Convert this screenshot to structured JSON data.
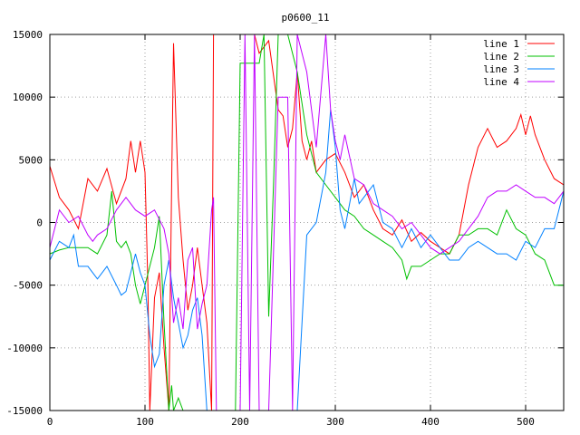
{
  "chart_data": {
    "type": "line",
    "title": "p0600_11",
    "xlabel": "",
    "ylabel": "",
    "xlim": [
      0,
      540
    ],
    "ylim": [
      -15000,
      15000
    ],
    "xticks": [
      0,
      100,
      200,
      300,
      400,
      500
    ],
    "yticks": [
      -15000,
      -10000,
      -5000,
      0,
      5000,
      10000,
      15000
    ],
    "grid": true,
    "legend_position": "top-right",
    "series": [
      {
        "name": "line 1",
        "color": "#ff0000",
        "points": [
          [
            0,
            4500
          ],
          [
            10,
            2000
          ],
          [
            20,
            1000
          ],
          [
            30,
            -500
          ],
          [
            40,
            3500
          ],
          [
            50,
            2500
          ],
          [
            60,
            4300
          ],
          [
            70,
            1500
          ],
          [
            80,
            3500
          ],
          [
            85,
            6500
          ],
          [
            90,
            4000
          ],
          [
            95,
            6500
          ],
          [
            100,
            4000
          ],
          [
            103,
            -5000
          ],
          [
            105,
            -15000
          ],
          [
            110,
            -6000
          ],
          [
            115,
            -4000
          ],
          [
            120,
            -10000
          ],
          [
            125,
            -15000
          ],
          [
            128,
            3000
          ],
          [
            130,
            14300
          ],
          [
            135,
            2000
          ],
          [
            140,
            -3000
          ],
          [
            145,
            -7000
          ],
          [
            150,
            -5000
          ],
          [
            155,
            -2000
          ],
          [
            160,
            -5000
          ],
          [
            165,
            -8000
          ],
          [
            170,
            -15000
          ],
          [
            172,
            15000
          ],
          [
            180,
            15000
          ],
          [
            200,
            15000
          ],
          [
            205,
            15000
          ],
          [
            210,
            15000
          ],
          [
            215,
            15000
          ],
          [
            220,
            13500
          ],
          [
            230,
            14500
          ],
          [
            240,
            9000
          ],
          [
            245,
            8500
          ],
          [
            250,
            6000
          ],
          [
            255,
            7500
          ],
          [
            260,
            12000
          ],
          [
            265,
            6500
          ],
          [
            270,
            5000
          ],
          [
            275,
            6500
          ],
          [
            280,
            4000
          ],
          [
            290,
            5000
          ],
          [
            300,
            5500
          ],
          [
            310,
            4000
          ],
          [
            320,
            2000
          ],
          [
            330,
            3000
          ],
          [
            340,
            1000
          ],
          [
            350,
            -500
          ],
          [
            360,
            -1000
          ],
          [
            370,
            200
          ],
          [
            380,
            -1500
          ],
          [
            390,
            -800
          ],
          [
            400,
            -1500
          ],
          [
            410,
            -2000
          ],
          [
            420,
            -2500
          ],
          [
            430,
            -1000
          ],
          [
            440,
            3000
          ],
          [
            450,
            6000
          ],
          [
            460,
            7500
          ],
          [
            470,
            6000
          ],
          [
            480,
            6500
          ],
          [
            490,
            7500
          ],
          [
            495,
            8600
          ],
          [
            500,
            7000
          ],
          [
            505,
            8500
          ],
          [
            510,
            7000
          ],
          [
            520,
            5000
          ],
          [
            530,
            3500
          ],
          [
            540,
            3000
          ]
        ]
      },
      {
        "name": "line 2",
        "color": "#00c000",
        "points": [
          [
            0,
            -2500
          ],
          [
            10,
            -2200
          ],
          [
            20,
            -2000
          ],
          [
            30,
            -2000
          ],
          [
            40,
            -2000
          ],
          [
            50,
            -2500
          ],
          [
            60,
            -1000
          ],
          [
            65,
            2500
          ],
          [
            70,
            -1500
          ],
          [
            75,
            -2000
          ],
          [
            80,
            -1500
          ],
          [
            85,
            -2500
          ],
          [
            90,
            -5000
          ],
          [
            95,
            -6500
          ],
          [
            100,
            -5000
          ],
          [
            110,
            -2000
          ],
          [
            115,
            500
          ],
          [
            120,
            -8000
          ],
          [
            125,
            -15000
          ],
          [
            128,
            -13000
          ],
          [
            130,
            -15000
          ],
          [
            135,
            -14000
          ],
          [
            140,
            -15000
          ],
          [
            150,
            -15000
          ],
          [
            160,
            -15000
          ],
          [
            170,
            -15000
          ],
          [
            180,
            -15000
          ],
          [
            190,
            -15000
          ],
          [
            195,
            -15000
          ],
          [
            200,
            12700
          ],
          [
            220,
            12700
          ],
          [
            225,
            15000
          ],
          [
            230,
            -7500
          ],
          [
            235,
            3000
          ],
          [
            240,
            15000
          ],
          [
            245,
            15000
          ],
          [
            250,
            15000
          ],
          [
            260,
            12000
          ],
          [
            270,
            7000
          ],
          [
            280,
            4000
          ],
          [
            290,
            3000
          ],
          [
            300,
            2000
          ],
          [
            310,
            1000
          ],
          [
            320,
            500
          ],
          [
            330,
            -500
          ],
          [
            340,
            -1000
          ],
          [
            350,
            -1500
          ],
          [
            360,
            -2000
          ],
          [
            370,
            -3000
          ],
          [
            375,
            -4500
          ],
          [
            380,
            -3500
          ],
          [
            390,
            -3500
          ],
          [
            400,
            -3000
          ],
          [
            410,
            -2500
          ],
          [
            420,
            -2500
          ],
          [
            430,
            -1000
          ],
          [
            440,
            -1000
          ],
          [
            450,
            -500
          ],
          [
            460,
            -500
          ],
          [
            470,
            -1000
          ],
          [
            480,
            1000
          ],
          [
            490,
            -500
          ],
          [
            500,
            -1000
          ],
          [
            510,
            -2500
          ],
          [
            520,
            -3000
          ],
          [
            530,
            -5000
          ],
          [
            540,
            -5000
          ]
        ]
      },
      {
        "name": "line 3",
        "color": "#0080ff",
        "points": [
          [
            0,
            -3000
          ],
          [
            10,
            -1500
          ],
          [
            20,
            -2000
          ],
          [
            25,
            -1000
          ],
          [
            30,
            -3500
          ],
          [
            40,
            -3500
          ],
          [
            50,
            -4500
          ],
          [
            60,
            -3500
          ],
          [
            70,
            -5000
          ],
          [
            75,
            -5800
          ],
          [
            80,
            -5500
          ],
          [
            85,
            -4000
          ],
          [
            90,
            -2500
          ],
          [
            95,
            -4000
          ],
          [
            100,
            -5000
          ],
          [
            105,
            -9000
          ],
          [
            110,
            -11500
          ],
          [
            115,
            -10500
          ],
          [
            120,
            -5000
          ],
          [
            125,
            -3000
          ],
          [
            130,
            -6000
          ],
          [
            135,
            -8000
          ],
          [
            140,
            -10000
          ],
          [
            145,
            -9000
          ],
          [
            150,
            -7000
          ],
          [
            155,
            -6000
          ],
          [
            160,
            -9000
          ],
          [
            165,
            -15000
          ],
          [
            170,
            -15000
          ],
          [
            180,
            -15000
          ],
          [
            190,
            -15000
          ],
          [
            200,
            -15000
          ],
          [
            210,
            -15000
          ],
          [
            220,
            -15000
          ],
          [
            230,
            -15000
          ],
          [
            240,
            -15000
          ],
          [
            250,
            -15000
          ],
          [
            260,
            -15000
          ],
          [
            270,
            -1000
          ],
          [
            280,
            0
          ],
          [
            290,
            4000
          ],
          [
            295,
            9000
          ],
          [
            300,
            6000
          ],
          [
            305,
            1000
          ],
          [
            310,
            -500
          ],
          [
            320,
            3500
          ],
          [
            325,
            1500
          ],
          [
            330,
            2000
          ],
          [
            340,
            3000
          ],
          [
            350,
            0
          ],
          [
            360,
            -500
          ],
          [
            370,
            -2000
          ],
          [
            380,
            -500
          ],
          [
            390,
            -2000
          ],
          [
            400,
            -1000
          ],
          [
            410,
            -2000
          ],
          [
            420,
            -3000
          ],
          [
            430,
            -3000
          ],
          [
            440,
            -2000
          ],
          [
            450,
            -1500
          ],
          [
            460,
            -2000
          ],
          [
            470,
            -2500
          ],
          [
            480,
            -2500
          ],
          [
            490,
            -3000
          ],
          [
            500,
            -1500
          ],
          [
            510,
            -2000
          ],
          [
            520,
            -500
          ],
          [
            530,
            -500
          ],
          [
            540,
            2500
          ]
        ]
      },
      {
        "name": "line 4",
        "color": "#c000ff",
        "points": [
          [
            0,
            -2000
          ],
          [
            5,
            -500
          ],
          [
            10,
            1000
          ],
          [
            20,
            0
          ],
          [
            30,
            500
          ],
          [
            40,
            -1000
          ],
          [
            45,
            -1500
          ],
          [
            50,
            -1000
          ],
          [
            60,
            -500
          ],
          [
            70,
            1000
          ],
          [
            80,
            2000
          ],
          [
            90,
            1000
          ],
          [
            100,
            500
          ],
          [
            110,
            1000
          ],
          [
            120,
            -500
          ],
          [
            125,
            -2500
          ],
          [
            130,
            -8000
          ],
          [
            135,
            -6000
          ],
          [
            140,
            -8500
          ],
          [
            145,
            -3000
          ],
          [
            150,
            -2000
          ],
          [
            155,
            -8500
          ],
          [
            160,
            -6500
          ],
          [
            165,
            -5000
          ],
          [
            170,
            1000
          ],
          [
            172,
            2000
          ],
          [
            175,
            -15000
          ],
          [
            180,
            -15000
          ],
          [
            190,
            -15000
          ],
          [
            200,
            -15000
          ],
          [
            205,
            15000
          ],
          [
            210,
            -15000
          ],
          [
            215,
            15000
          ],
          [
            220,
            -15000
          ],
          [
            230,
            -15000
          ],
          [
            240,
            10000
          ],
          [
            250,
            10000
          ],
          [
            255,
            -15000
          ],
          [
            260,
            15000
          ],
          [
            270,
            12000
          ],
          [
            280,
            6000
          ],
          [
            290,
            15000
          ],
          [
            295,
            9000
          ],
          [
            300,
            6500
          ],
          [
            305,
            5000
          ],
          [
            310,
            7000
          ],
          [
            320,
            3500
          ],
          [
            330,
            3000
          ],
          [
            340,
            1500
          ],
          [
            350,
            1000
          ],
          [
            360,
            500
          ],
          [
            370,
            -500
          ],
          [
            380,
            0
          ],
          [
            390,
            -1000
          ],
          [
            400,
            -2000
          ],
          [
            410,
            -2500
          ],
          [
            420,
            -2000
          ],
          [
            430,
            -1500
          ],
          [
            440,
            -500
          ],
          [
            450,
            500
          ],
          [
            460,
            2000
          ],
          [
            470,
            2500
          ],
          [
            480,
            2500
          ],
          [
            490,
            3000
          ],
          [
            500,
            2500
          ],
          [
            510,
            2000
          ],
          [
            520,
            2000
          ],
          [
            530,
            1500
          ],
          [
            540,
            2500
          ]
        ]
      }
    ]
  }
}
